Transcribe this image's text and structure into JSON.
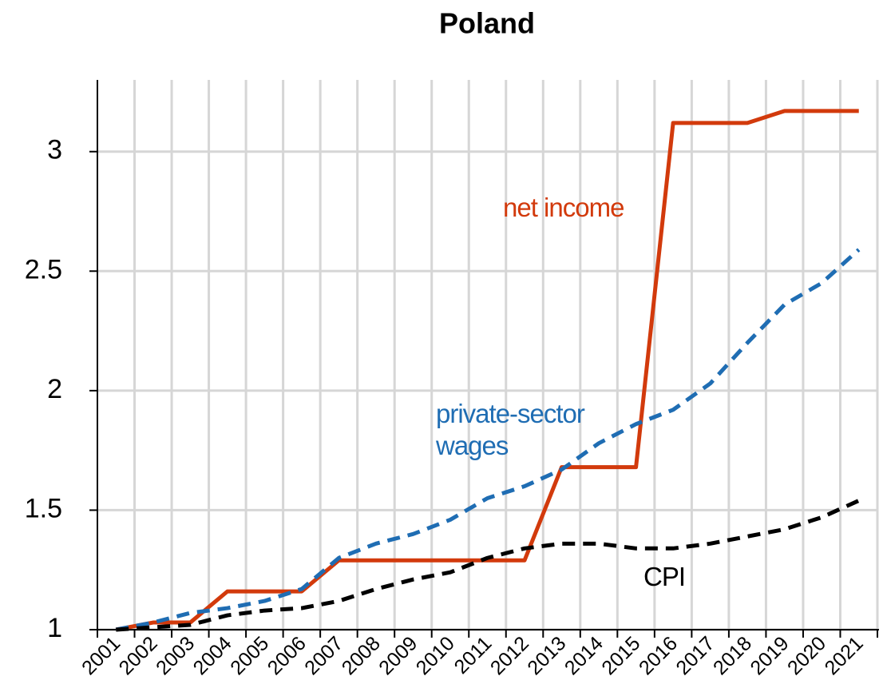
{
  "chart_data": {
    "type": "line",
    "title": "Poland",
    "categories": [
      "2001",
      "2002",
      "2003",
      "2004",
      "2005",
      "2006",
      "2007",
      "2008",
      "2009",
      "2010",
      "2011",
      "2012",
      "2013",
      "2014",
      "2015",
      "2016",
      "2017",
      "2018",
      "2019",
      "2020",
      "2021"
    ],
    "series": [
      {
        "name": "net income",
        "color": "#d23a0c",
        "dash": false,
        "values": [
          1.0,
          1.03,
          1.03,
          1.16,
          1.16,
          1.16,
          1.29,
          1.29,
          1.29,
          1.29,
          1.29,
          1.29,
          1.68,
          1.68,
          1.68,
          3.12,
          3.12,
          3.12,
          3.17,
          3.17,
          3.17
        ]
      },
      {
        "name": "private-sector wages",
        "color": "#1f6db3",
        "dash": true,
        "values": [
          1.0,
          1.03,
          1.07,
          1.09,
          1.12,
          1.17,
          1.3,
          1.36,
          1.4,
          1.46,
          1.55,
          1.6,
          1.67,
          1.78,
          1.86,
          1.92,
          2.03,
          2.2,
          2.36,
          2.45,
          2.59
        ]
      },
      {
        "name": "CPI",
        "color": "#000000",
        "dash": true,
        "values": [
          1.0,
          1.01,
          1.02,
          1.06,
          1.08,
          1.09,
          1.12,
          1.17,
          1.21,
          1.24,
          1.3,
          1.34,
          1.36,
          1.36,
          1.34,
          1.34,
          1.36,
          1.39,
          1.42,
          1.47,
          1.54
        ]
      }
    ],
    "ylim": [
      1,
      3.3
    ],
    "yticks": [
      1,
      1.5,
      2,
      2.5,
      3
    ],
    "grid": true
  }
}
